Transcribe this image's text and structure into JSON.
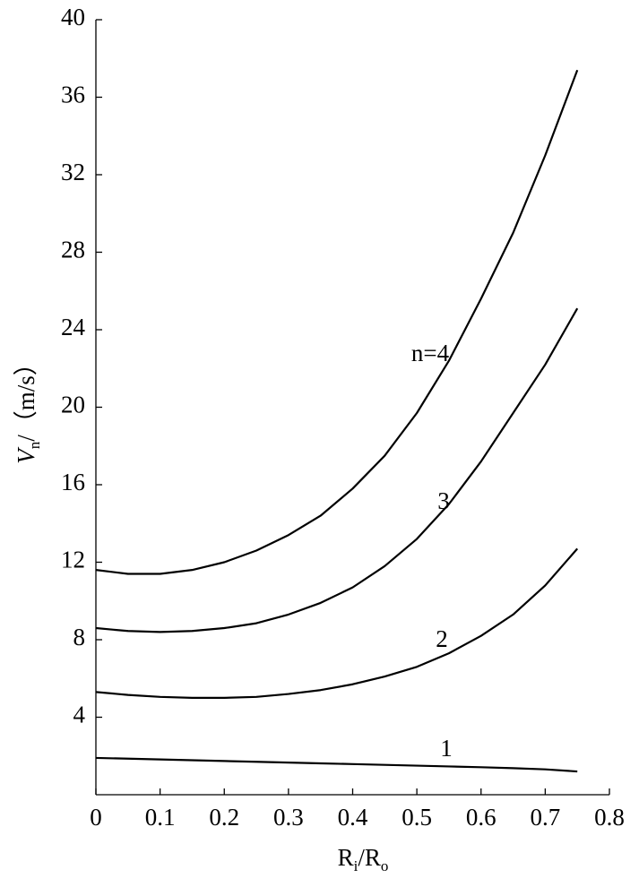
{
  "chart_data": {
    "type": "line",
    "x_label": [
      "R",
      "i",
      "/R",
      "o"
    ],
    "y_label": [
      "V",
      "n",
      "/（m/s）"
    ],
    "x": [
      0,
      0.05,
      0.1,
      0.15,
      0.2,
      0.25,
      0.3,
      0.35,
      0.4,
      0.45,
      0.5,
      0.55,
      0.6,
      0.65,
      0.7,
      0.75
    ],
    "series": [
      {
        "name": "1",
        "color": "#000000",
        "values": [
          1.9,
          1.86,
          1.82,
          1.78,
          1.74,
          1.7,
          1.66,
          1.62,
          1.58,
          1.54,
          1.5,
          1.46,
          1.42,
          1.37,
          1.31,
          1.2
        ]
      },
      {
        "name": "2",
        "color": "#000000",
        "values": [
          5.3,
          5.15,
          5.05,
          5.0,
          5.0,
          5.05,
          5.2,
          5.4,
          5.7,
          6.1,
          6.6,
          7.3,
          8.2,
          9.3,
          10.8,
          12.7
        ]
      },
      {
        "name": "3",
        "color": "#000000",
        "values": [
          8.6,
          8.45,
          8.4,
          8.45,
          8.6,
          8.85,
          9.3,
          9.9,
          10.7,
          11.8,
          13.2,
          15.0,
          17.2,
          19.7,
          22.2,
          25.1
        ]
      },
      {
        "name": "n=4",
        "color": "#000000",
        "values": [
          11.6,
          11.4,
          11.4,
          11.6,
          12.0,
          12.6,
          13.4,
          14.4,
          15.8,
          17.5,
          19.7,
          22.4,
          25.6,
          29.0,
          33.0,
          37.4
        ]
      }
    ],
    "xlim": [
      0,
      0.8
    ],
    "xticks": [
      0,
      0.1,
      0.2,
      0.3,
      0.4,
      0.5,
      0.6,
      0.7,
      0.8
    ],
    "ylim": [
      0,
      40
    ],
    "yticks": [
      4,
      8,
      12,
      16,
      20,
      24,
      28,
      32,
      36,
      40
    ]
  }
}
